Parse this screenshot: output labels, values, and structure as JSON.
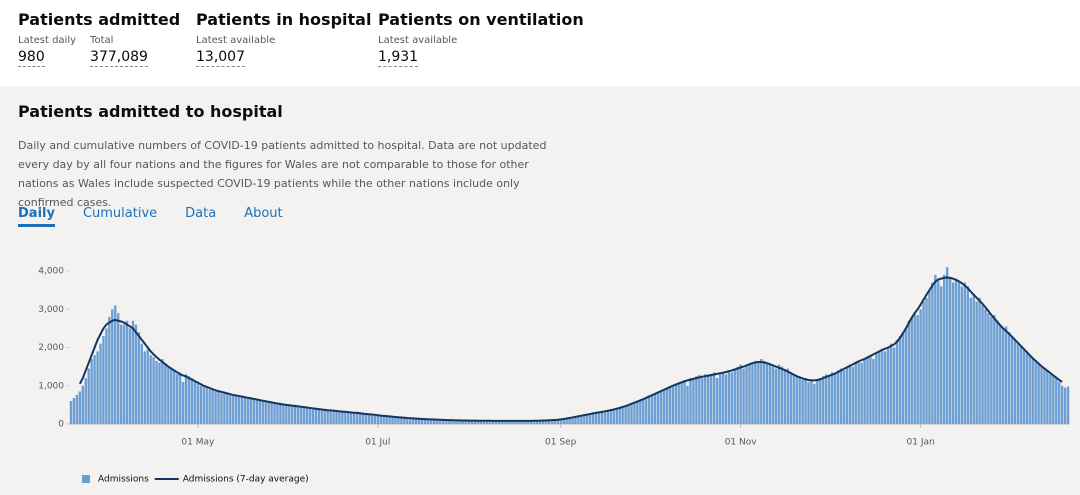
{
  "stats": [
    {
      "title": "Patients admitted",
      "items": [
        {
          "label": "Latest daily",
          "value": "980"
        },
        {
          "label": "Total",
          "value": "377,089"
        }
      ]
    },
    {
      "title": "Patients in hospital",
      "items": [
        {
          "label": "Latest available",
          "value": "13,007"
        }
      ]
    },
    {
      "title": "Patients on ventilation",
      "items": [
        {
          "label": "Latest available",
          "value": "1,931"
        }
      ]
    }
  ],
  "card": {
    "title": "Patients admitted to hospital",
    "description": "Daily and cumulative numbers of COVID-19 patients admitted to hospital. Data are not updated every day by all four nations and the figures for Wales are not comparable to those for other nations as Wales include suspected COVID-19 patients while the other nations include only confirmed cases.",
    "tabs": [
      "Daily",
      "Cumulative",
      "Data",
      "About"
    ]
  },
  "chart_data": {
    "type": "bar",
    "categories": [
      null,
      null,
      null,
      null,
      null,
      null,
      null,
      null,
      null,
      null,
      null,
      null,
      null,
      null,
      null,
      null,
      null,
      null,
      null,
      null,
      null,
      null,
      null,
      null,
      null,
      null,
      null,
      null,
      null,
      null,
      null,
      null,
      null,
      null,
      null,
      null,
      null,
      null,
      null,
      null,
      null,
      null,
      null,
      "01 May",
      null,
      null,
      null,
      null,
      null,
      null,
      null,
      null,
      null,
      null,
      null,
      null,
      null,
      null,
      null,
      null,
      null,
      null,
      null,
      null,
      null,
      null,
      null,
      null,
      null,
      null,
      null,
      null,
      null,
      null,
      null,
      null,
      null,
      null,
      null,
      null,
      null,
      null,
      null,
      null,
      null,
      null,
      null,
      null,
      null,
      null,
      null,
      null,
      null,
      null,
      null,
      null,
      null,
      null,
      null,
      null,
      null,
      null,
      null,
      null,
      "01 Jul",
      null,
      null,
      null,
      null,
      null,
      null,
      null,
      null,
      null,
      null,
      null,
      null,
      null,
      null,
      null,
      null,
      null,
      null,
      null,
      null,
      null,
      null,
      null,
      null,
      null,
      null,
      null,
      null,
      null,
      null,
      null,
      null,
      null,
      null,
      null,
      null,
      null,
      null,
      null,
      null,
      null,
      null,
      null,
      null,
      null,
      null,
      null,
      null,
      null,
      null,
      null,
      null,
      null,
      null,
      null,
      null,
      null,
      null,
      null,
      null,
      null,
      "01 Sep",
      null,
      null,
      null,
      null,
      null,
      null,
      null,
      null,
      null,
      null,
      null,
      null,
      null,
      null,
      null,
      null,
      null,
      null,
      null,
      null,
      null,
      null,
      null,
      null,
      null,
      null,
      null,
      null,
      null,
      null,
      null,
      null,
      null,
      null,
      null,
      null,
      null,
      null,
      null,
      null,
      null,
      null,
      null,
      null,
      null,
      null,
      null,
      null,
      null,
      null,
      null,
      null,
      null,
      null,
      null,
      null,
      null,
      null,
      null,
      null,
      "01 Nov",
      null,
      null,
      null,
      null,
      null,
      null,
      null,
      null,
      null,
      null,
      null,
      null,
      null,
      null,
      null,
      null,
      null,
      null,
      null,
      null,
      null,
      null,
      null,
      null,
      null,
      null,
      null,
      null,
      null,
      null,
      null,
      null,
      null,
      null,
      null,
      null,
      null,
      null,
      null,
      null,
      null,
      null,
      null,
      null,
      null,
      null,
      null,
      null,
      null,
      null,
      null,
      null,
      null,
      null,
      null,
      null,
      null,
      null,
      null,
      null,
      "01 Jan",
      null,
      null,
      null,
      null,
      null,
      null,
      null,
      null,
      null,
      null,
      null,
      null,
      null,
      null,
      null,
      null,
      null,
      null,
      null,
      null,
      null,
      null,
      null,
      null,
      null,
      null,
      null,
      null,
      null,
      null,
      null,
      null,
      null,
      null,
      null,
      null,
      null,
      null,
      null,
      null,
      null,
      null,
      null,
      null,
      null,
      null,
      null,
      null,
      null,
      null
    ],
    "series": [
      {
        "name": "Admissions",
        "color": "#6d9ed3",
        "values": [
          600,
          680,
          760,
          850,
          1000,
          1200,
          1450,
          1700,
          1800,
          1900,
          2100,
          2300,
          2500,
          2800,
          3000,
          3100,
          2900,
          2600,
          2600,
          2700,
          2500,
          2700,
          2600,
          2400,
          2100,
          1900,
          1950,
          1800,
          1750,
          1650,
          1600,
          1700,
          1550,
          1500,
          1450,
          1400,
          1300,
          1350,
          1100,
          1300,
          1250,
          1200,
          1100,
          1050,
          1000,
          1000,
          950,
          900,
          920,
          850,
          850,
          800,
          820,
          780,
          780,
          750,
          760,
          720,
          700,
          720,
          680,
          700,
          650,
          660,
          640,
          620,
          600,
          580,
          560,
          560,
          540,
          560,
          520,
          500,
          490,
          480,
          500,
          460,
          450,
          440,
          430,
          420,
          410,
          420,
          400,
          380,
          370,
          360,
          360,
          350,
          340,
          330,
          330,
          320,
          310,
          300,
          300,
          290,
          280,
          270,
          260,
          250,
          250,
          240,
          230,
          220,
          210,
          200,
          200,
          190,
          180,
          170,
          170,
          160,
          160,
          150,
          150,
          140,
          140,
          130,
          130,
          125,
          120,
          120,
          115,
          110,
          110,
          105,
          100,
          100,
          100,
          95,
          95,
          90,
          90,
          90,
          88,
          86,
          85,
          85,
          85,
          84,
          84,
          83,
          82,
          82,
          82,
          82,
          80,
          80,
          80,
          80,
          80,
          80,
          82,
          82,
          84,
          85,
          86,
          88,
          90,
          92,
          95,
          100,
          105,
          110,
          120,
          130,
          145,
          160,
          175,
          190,
          205,
          220,
          235,
          250,
          265,
          280,
          295,
          305,
          315,
          330,
          345,
          360,
          380,
          400,
          420,
          440,
          470,
          500,
          530,
          560,
          590,
          620,
          650,
          690,
          720,
          760,
          800,
          840,
          870,
          900,
          940,
          980,
          1000,
          1050,
          1080,
          1100,
          1150,
          1000,
          1200,
          1150,
          1250,
          1280,
          1200,
          1300,
          1250,
          1300,
          1350,
          1200,
          1300,
          1350,
          1300,
          1400,
          1350,
          1450,
          1500,
          1550,
          1450,
          1500,
          1550,
          1600,
          1650,
          1600,
          1700,
          1650,
          1600,
          1550,
          1500,
          1450,
          1550,
          1500,
          1400,
          1450,
          1350,
          1300,
          1250,
          1200,
          1150,
          1200,
          1100,
          1150,
          1050,
          1150,
          1200,
          1250,
          1300,
          1250,
          1350,
          1300,
          1400,
          1450,
          1400,
          1500,
          1550,
          1500,
          1600,
          1650,
          1600,
          1700,
          1750,
          1800,
          1700,
          1850,
          1900,
          1950,
          1900,
          2000,
          2100,
          2000,
          2200,
          2300,
          2400,
          2500,
          2700,
          2800,
          2900,
          2850,
          3000,
          3200,
          3300,
          3500,
          3700,
          3900,
          3800,
          3600,
          3900,
          4100,
          3800,
          3700,
          3800,
          3700,
          3600,
          3700,
          3600,
          3300,
          3400,
          3200,
          3300,
          3100,
          3000,
          2900,
          2800,
          2850,
          2700,
          2600,
          2500,
          2550,
          2400,
          2300,
          2200,
          2100,
          2050,
          1950,
          1900,
          1800,
          1700,
          1650,
          1600,
          1500,
          1450,
          1400,
          1300,
          1250,
          1200,
          1100,
          1000,
          950,
          980
        ]
      },
      {
        "name": "Admissions (7-day average)",
        "color": "#12365f",
        "values": [
          null,
          null,
          null,
          1050,
          1200,
          1400,
          1600,
          1800,
          2000,
          2200,
          2350,
          2500,
          2600,
          2650,
          2700,
          2720,
          2700,
          2680,
          2650,
          2600,
          2550,
          2500,
          2400,
          2300,
          2200,
          2100,
          2000,
          1900,
          1820,
          1750,
          1680,
          1620,
          1560,
          1500,
          1450,
          1400,
          1350,
          1300,
          1270,
          1240,
          1200,
          1160,
          1120,
          1080,
          1040,
          1000,
          970,
          940,
          910,
          880,
          860,
          840,
          820,
          800,
          780,
          760,
          745,
          730,
          715,
          700,
          685,
          670,
          655,
          640,
          625,
          610,
          595,
          580,
          565,
          550,
          535,
          520,
          510,
          500,
          490,
          480,
          470,
          460,
          450,
          440,
          430,
          420,
          410,
          400,
          390,
          380,
          370,
          360,
          355,
          350,
          340,
          330,
          325,
          320,
          310,
          300,
          295,
          290,
          280,
          270,
          260,
          255,
          250,
          240,
          230,
          220,
          212,
          205,
          198,
          190,
          182,
          176,
          170,
          164,
          158,
          152,
          147,
          142,
          137,
          132,
          128,
          124,
          120,
          117,
          114,
          111,
          108,
          105,
          102,
          100,
          98,
          96,
          94,
          92,
          90,
          89,
          88,
          87,
          86,
          85,
          85,
          84,
          84,
          83,
          83,
          82,
          82,
          82,
          81,
          81,
          81,
          81,
          81,
          81,
          82,
          82,
          83,
          84,
          85,
          87,
          90,
          93,
          97,
          101,
          106,
          112,
          120,
          130,
          143,
          157,
          172,
          187,
          202,
          217,
          232,
          247,
          262,
          277,
          292,
          305,
          318,
          332,
          346,
          362,
          380,
          400,
          422,
          445,
          470,
          500,
          528,
          557,
          587,
          618,
          650,
          685,
          720,
          755,
          790,
          825,
          860,
          895,
          930,
          965,
          1000,
          1030,
          1060,
          1090,
          1120,
          1140,
          1160,
          1180,
          1200,
          1220,
          1235,
          1250,
          1265,
          1280,
          1295,
          1310,
          1325,
          1340,
          1360,
          1380,
          1400,
          1425,
          1450,
          1480,
          1500,
          1530,
          1560,
          1590,
          1610,
          1620,
          1620,
          1610,
          1590,
          1560,
          1530,
          1500,
          1470,
          1440,
          1410,
          1370,
          1330,
          1290,
          1250,
          1220,
          1190,
          1170,
          1150,
          1140,
          1140,
          1150,
          1170,
          1200,
          1230,
          1260,
          1290,
          1320,
          1360,
          1400,
          1440,
          1480,
          1520,
          1560,
          1600,
          1640,
          1670,
          1700,
          1740,
          1780,
          1820,
          1860,
          1900,
          1940,
          1970,
          2000,
          2040,
          2080,
          2150,
          2250,
          2370,
          2500,
          2640,
          2780,
          2900,
          3000,
          3120,
          3250,
          3380,
          3500,
          3620,
          3720,
          3780,
          3800,
          3820,
          3830,
          3820,
          3800,
          3770,
          3730,
          3680,
          3620,
          3550,
          3460,
          3380,
          3300,
          3220,
          3140,
          3050,
          2950,
          2850,
          2760,
          2670,
          2580,
          2500,
          2430,
          2360,
          2280,
          2200,
          2120,
          2040,
          1960,
          1880,
          1800,
          1720,
          1650,
          1580,
          1510,
          1450,
          1390,
          1330,
          1270,
          1210,
          1150,
          1100,
          null,
          null
        ]
      }
    ],
    "ylim": [
      0,
      4200
    ],
    "yticks": [
      0,
      {
        "value": 1000,
        "label": "1,000"
      },
      {
        "value": 2000,
        "label": "2,000"
      },
      {
        "value": 3000,
        "label": "3,000"
      },
      {
        "value": 4000,
        "label": "4,000"
      }
    ],
    "legend": "bottom-left"
  }
}
